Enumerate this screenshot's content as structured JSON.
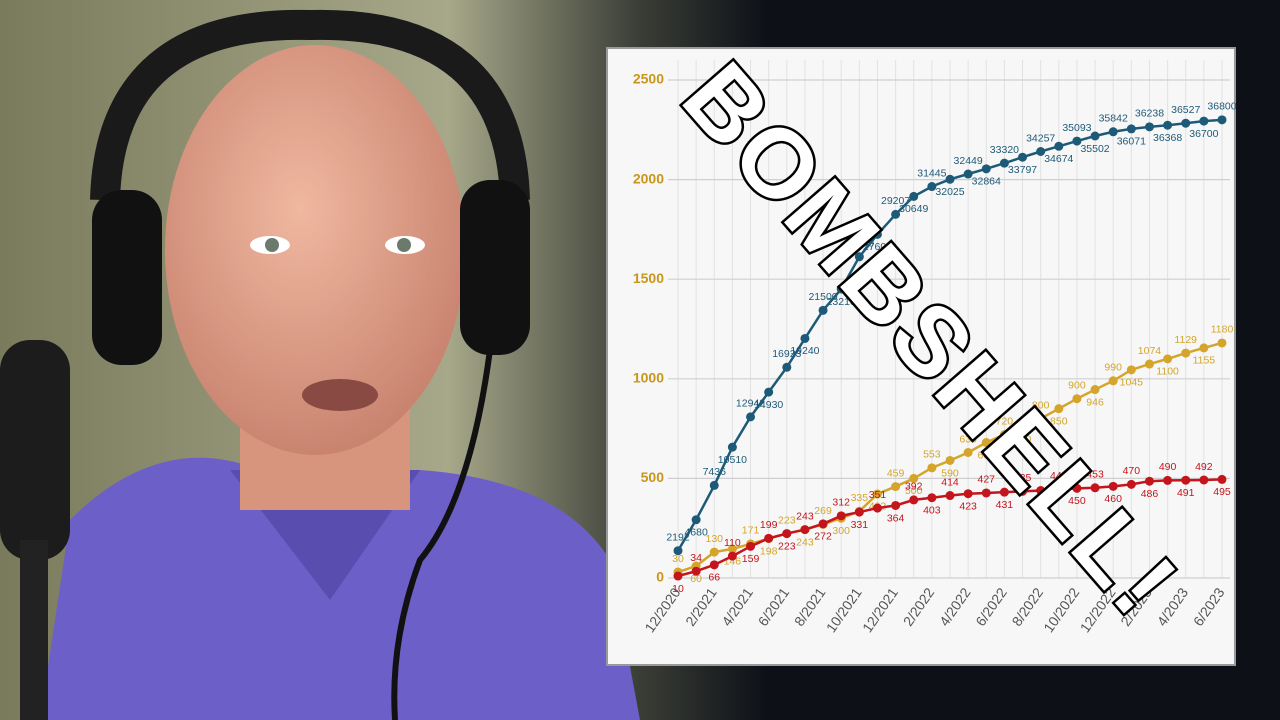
{
  "chart_data": {
    "type": "line",
    "annotation": "BOMBSHELL!",
    "categories": [
      "12/2020",
      null,
      "2/2021",
      null,
      "4/2021",
      null,
      "6/2021",
      null,
      "8/2021",
      null,
      "10/2021",
      null,
      "12/2021",
      null,
      "2/2022",
      null,
      "4/2022",
      null,
      "6/2022",
      null,
      "8/2022",
      null,
      "10/2022",
      null,
      "12/2022",
      null,
      "2/2023",
      null,
      "4/2023",
      null,
      "6/2023"
    ],
    "ylim": [
      0,
      2500
    ],
    "yticks": [
      0,
      500,
      1000,
      1500,
      2000,
      2500
    ],
    "y2lim": [
      0,
      40000
    ],
    "grid": true,
    "series": [
      {
        "color": "#1d5a78",
        "axis": "y2",
        "values": [
          2192,
          4680,
          7436,
          10510,
          12942,
          14930,
          16923,
          19240,
          21500,
          23210,
          25800,
          27600,
          29207,
          30649,
          31445,
          32025,
          32449,
          32864,
          33320,
          33797,
          34257,
          34674,
          35093,
          35502,
          35842,
          36071,
          36238,
          36368,
          36527,
          36700,
          36800
        ]
      },
      {
        "color": "#d4a52a",
        "values": [
          30,
          60,
          130,
          146,
          171,
          198,
          223,
          243,
          269,
          300,
          335,
          422,
          459,
          500,
          553,
          590,
          630,
          680,
          720,
          760,
          800,
          850,
          900,
          946,
          990,
          1045,
          1074,
          1100,
          1129,
          1155,
          1180
        ]
      },
      {
        "color": "#c4141c",
        "values": [
          10,
          34,
          66,
          110,
          159,
          199,
          223,
          243,
          272,
          312,
          331,
          351,
          364,
          392,
          403,
          414,
          423,
          427,
          431,
          435,
          439,
          445,
          450,
          453,
          460,
          470,
          486,
          490,
          491,
          492,
          495
        ]
      }
    ]
  }
}
